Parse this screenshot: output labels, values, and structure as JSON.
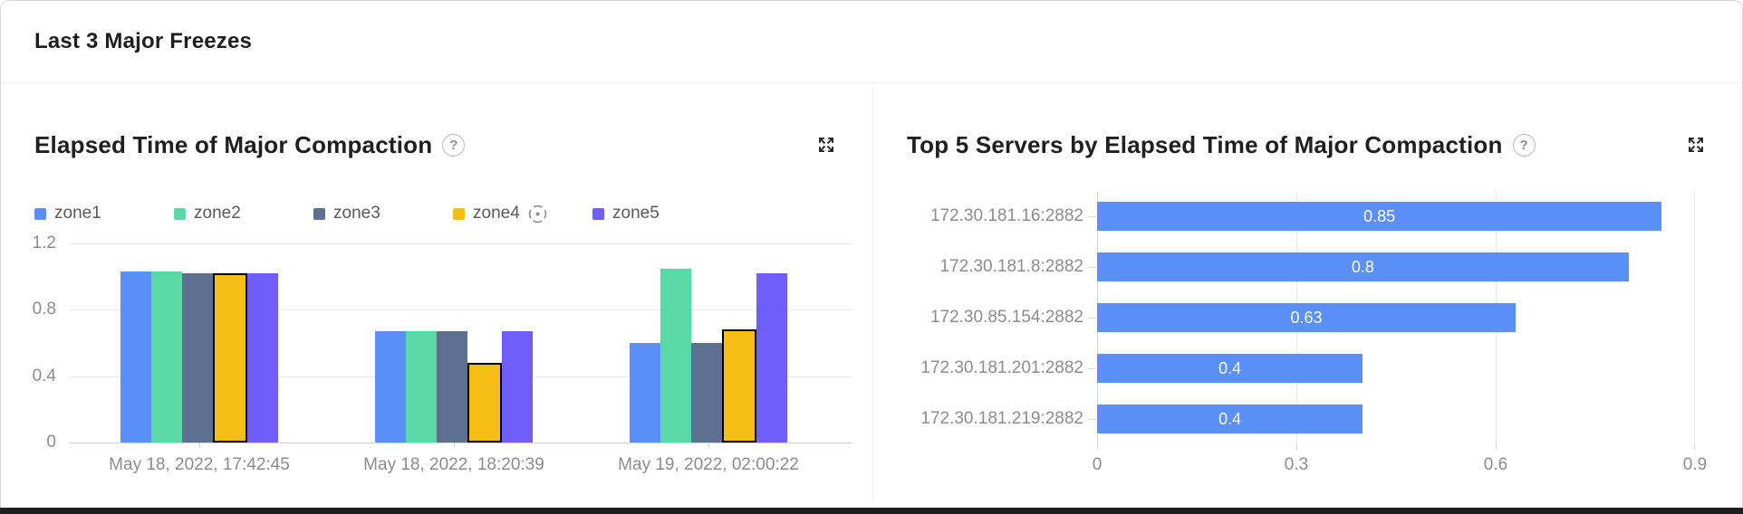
{
  "header": {
    "title": "Last 3 Major Freezes"
  },
  "left_panel": {
    "title": "Elapsed Time of Major Compaction",
    "help_glyph": "?",
    "help_icon": "question-circle-icon",
    "expand_icon": "expand-arrows-icon"
  },
  "right_panel": {
    "title": "Top 5 Servers by Elapsed Time of Major Compaction",
    "help_glyph": "?",
    "help_icon": "question-circle-icon",
    "expand_icon": "expand-arrows-icon"
  },
  "chart_data": [
    {
      "type": "bar",
      "title": "Elapsed Time of Major Compaction",
      "categories": [
        "May 18, 2022, 17:42:45",
        "May 18, 2022, 18:20:39",
        "May 19, 2022, 02:00:22"
      ],
      "series": [
        {
          "name": "zone1",
          "color": "#5B8FF9",
          "values": [
            1.03,
            0.67,
            0.6
          ]
        },
        {
          "name": "zone2",
          "color": "#5AD8A6",
          "values": [
            1.03,
            0.67,
            1.05
          ]
        },
        {
          "name": "zone3",
          "color": "#5D7092",
          "values": [
            1.02,
            0.67,
            0.6
          ]
        },
        {
          "name": "zone4",
          "color": "#F6BD16",
          "values": [
            1.02,
            0.48,
            0.68
          ],
          "highlighted": true,
          "icon": "target-icon"
        },
        {
          "name": "zone5",
          "color": "#6F5EF9",
          "values": [
            1.02,
            0.67,
            1.02
          ]
        }
      ],
      "y_ticks": [
        "0",
        "0.4",
        "0.8",
        "1.2"
      ],
      "ylim": [
        0,
        1.2
      ],
      "legend_position": "top",
      "grid": "horizontal"
    },
    {
      "type": "bar",
      "orientation": "horizontal",
      "title": "Top 5 Servers by Elapsed Time of Major Compaction",
      "categories": [
        "172.30.181.16:2882",
        "172.30.181.8:2882",
        "172.30.85.154:2882",
        "172.30.181.201:2882",
        "172.30.181.219:2882"
      ],
      "values": [
        0.85,
        0.8,
        0.63,
        0.4,
        0.4
      ],
      "bar_color": "#5B8FF9",
      "value_label_color": "#ffffff",
      "x_ticks": [
        "0",
        "0.3",
        "0.6",
        "0.9"
      ],
      "xlim": [
        0,
        0.9
      ],
      "grid": "vertical"
    }
  ]
}
